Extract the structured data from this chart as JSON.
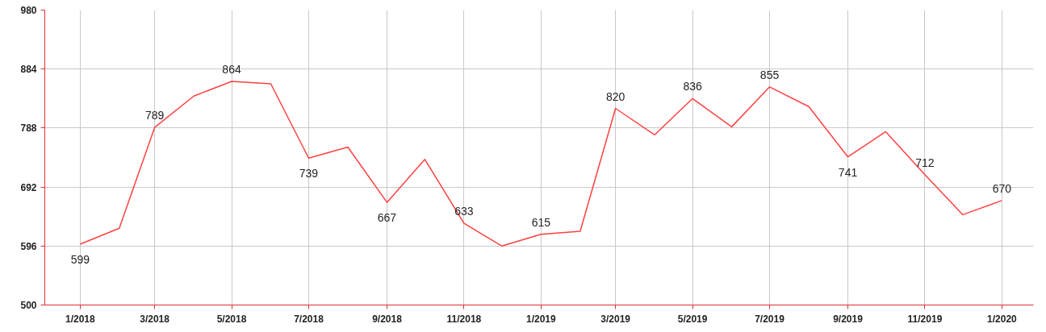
{
  "chart_data": {
    "type": "line",
    "x": [
      "2018-01",
      "2018-02",
      "2018-03",
      "2018-04",
      "2018-05",
      "2018-06",
      "2018-07",
      "2018-08",
      "2018-09",
      "2018-10",
      "2018-11",
      "2018-12",
      "2019-01",
      "2019-02",
      "2019-03",
      "2019-04",
      "2019-05",
      "2019-06",
      "2019-07",
      "2019-08",
      "2019-09",
      "2019-10",
      "2019-11",
      "2019-12",
      "2020-01"
    ],
    "series": [
      {
        "color": "#ff4040",
        "values": [
          599,
          625,
          789,
          840,
          864,
          860,
          739,
          757,
          667,
          737,
          633,
          596,
          615,
          620,
          820,
          777,
          836,
          790,
          855,
          823,
          741,
          782,
          712,
          647,
          670
        ],
        "value_labels": [
          "599",
          null,
          "789",
          null,
          "864",
          null,
          "739",
          null,
          "667",
          null,
          "633",
          null,
          "615",
          null,
          "820",
          null,
          "836",
          null,
          "855",
          null,
          "741",
          null,
          "712",
          null,
          "670"
        ]
      }
    ],
    "ylim": [
      500,
      980
    ],
    "yticks": [
      500,
      596,
      692,
      788,
      884,
      980
    ],
    "xlim": [
      "2017-12-04",
      "2020-01-26"
    ],
    "xticks": [
      {
        "value": "2018-01",
        "label": "1/2018"
      },
      {
        "value": "2018-03",
        "label": "3/2018"
      },
      {
        "value": "2018-05",
        "label": "5/2018"
      },
      {
        "value": "2018-07",
        "label": "7/2018"
      },
      {
        "value": "2018-09",
        "label": "9/2018"
      },
      {
        "value": "2018-11",
        "label": "11/2018"
      },
      {
        "value": "2019-01",
        "label": "1/2019"
      },
      {
        "value": "2019-03",
        "label": "3/2019"
      },
      {
        "value": "2019-05",
        "label": "5/2019"
      },
      {
        "value": "2019-07",
        "label": "7/2019"
      },
      {
        "value": "2019-09",
        "label": "9/2019"
      },
      {
        "value": "2019-11",
        "label": "11/2019"
      },
      {
        "value": "2020-01",
        "label": "1/2020"
      }
    ],
    "grid": true,
    "marker": "none",
    "line_style": "solid"
  }
}
